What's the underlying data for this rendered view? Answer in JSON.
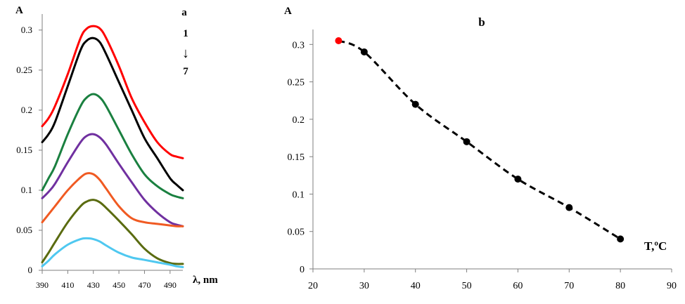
{
  "chart_data": [
    {
      "type": "line",
      "panel_label": "a",
      "ylabel": "A",
      "xlabel": "λ, nm",
      "xlim": [
        390,
        500
      ],
      "ylim": [
        0,
        0.32
      ],
      "x_ticks": [
        "390",
        "410",
        "430",
        "450",
        "470",
        "490"
      ],
      "y_ticks": [
        "0",
        "0.05",
        "0.1",
        "0.15",
        "0.2",
        "0.25",
        "0.3"
      ],
      "annotation_start": "1",
      "annotation_arrow": "↓",
      "annotation_end": "7",
      "grid": false,
      "series": [
        {
          "color": "#ff0000",
          "x": [
            390,
            395,
            400,
            410,
            420,
            425,
            430,
            435,
            440,
            450,
            460,
            470,
            480,
            490,
            495,
            500
          ],
          "values": [
            0.18,
            0.19,
            0.205,
            0.245,
            0.29,
            0.302,
            0.305,
            0.302,
            0.29,
            0.255,
            0.215,
            0.185,
            0.16,
            0.145,
            0.142,
            0.14
          ]
        },
        {
          "color": "#000000",
          "x": [
            390,
            395,
            400,
            410,
            420,
            425,
            430,
            435,
            440,
            450,
            460,
            470,
            480,
            490,
            495,
            500
          ],
          "values": [
            0.16,
            0.17,
            0.185,
            0.23,
            0.275,
            0.287,
            0.29,
            0.285,
            0.27,
            0.235,
            0.2,
            0.165,
            0.14,
            0.115,
            0.107,
            0.1
          ]
        },
        {
          "color": "#1a8040",
          "x": [
            390,
            395,
            400,
            410,
            420,
            425,
            430,
            435,
            440,
            450,
            460,
            470,
            480,
            490,
            495,
            500
          ],
          "values": [
            0.1,
            0.115,
            0.13,
            0.17,
            0.205,
            0.216,
            0.22,
            0.216,
            0.205,
            0.175,
            0.145,
            0.12,
            0.105,
            0.095,
            0.092,
            0.09
          ]
        },
        {
          "color": "#7030a0",
          "x": [
            390,
            395,
            400,
            410,
            420,
            425,
            430,
            435,
            440,
            450,
            460,
            470,
            480,
            490,
            495,
            500
          ],
          "values": [
            0.09,
            0.098,
            0.108,
            0.135,
            0.16,
            0.168,
            0.17,
            0.166,
            0.157,
            0.133,
            0.11,
            0.088,
            0.072,
            0.06,
            0.057,
            0.055
          ]
        },
        {
          "color": "#f05a22",
          "x": [
            390,
            395,
            400,
            410,
            420,
            425,
            430,
            435,
            440,
            450,
            460,
            470,
            480,
            490,
            495,
            500
          ],
          "values": [
            0.06,
            0.07,
            0.08,
            0.1,
            0.116,
            0.121,
            0.12,
            0.113,
            0.102,
            0.08,
            0.065,
            0.06,
            0.058,
            0.056,
            0.055,
            0.055
          ]
        },
        {
          "color": "#5a6b10",
          "x": [
            390,
            395,
            400,
            410,
            420,
            425,
            430,
            435,
            440,
            450,
            460,
            470,
            480,
            490,
            495,
            500
          ],
          "values": [
            0.01,
            0.022,
            0.035,
            0.06,
            0.08,
            0.086,
            0.088,
            0.085,
            0.078,
            0.062,
            0.045,
            0.027,
            0.015,
            0.009,
            0.008,
            0.008
          ]
        },
        {
          "color": "#4fc8f0",
          "x": [
            390,
            395,
            400,
            410,
            420,
            425,
            430,
            435,
            440,
            450,
            460,
            470,
            480,
            490,
            495,
            500
          ],
          "values": [
            0.005,
            0.012,
            0.02,
            0.032,
            0.039,
            0.04,
            0.039,
            0.036,
            0.031,
            0.022,
            0.016,
            0.013,
            0.01,
            0.007,
            0.005,
            0.004
          ]
        }
      ]
    },
    {
      "type": "line",
      "panel_label": "b",
      "ylabel": "A",
      "xlabel": "T,ºC",
      "xlim": [
        20,
        90
      ],
      "ylim": [
        0,
        0.32
      ],
      "x_ticks": [
        "20",
        "30",
        "40",
        "50",
        "60",
        "70",
        "80",
        "90"
      ],
      "y_ticks": [
        "0",
        "0.05",
        "0.1",
        "0.15",
        "0.2",
        "0.25",
        "0.3"
      ],
      "grid": false,
      "line_style": "dashed",
      "line_color": "#000000",
      "highlight_color": "#ff0000",
      "marker_color": "#000000",
      "series": [
        {
          "x": [
            25,
            30,
            40,
            50,
            60,
            70,
            80
          ],
          "values": [
            0.305,
            0.29,
            0.22,
            0.17,
            0.12,
            0.082,
            0.04
          ]
        }
      ]
    }
  ]
}
